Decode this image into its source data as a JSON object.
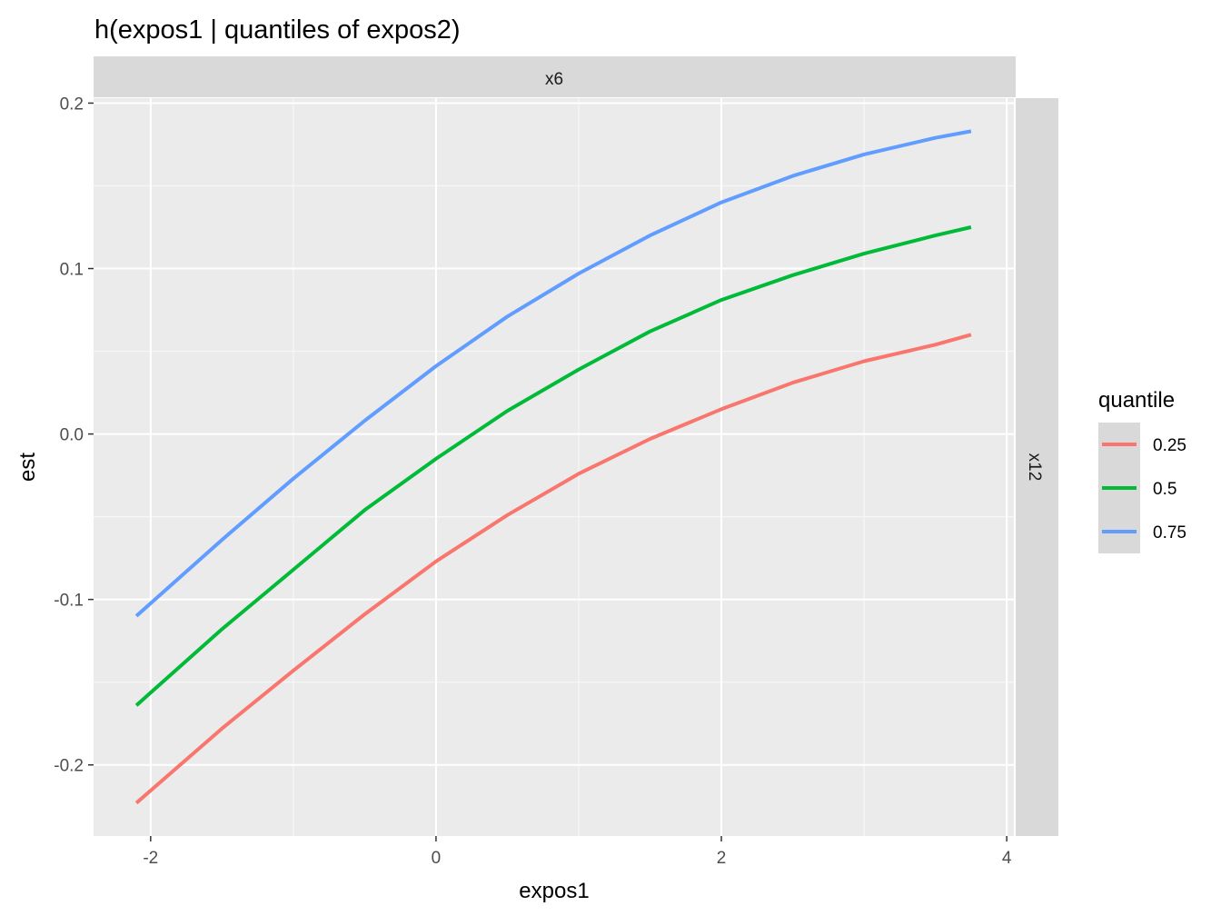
{
  "chart_data": {
    "type": "line",
    "title": "h(expos1 | quantiles of expos2)",
    "xlabel": "expos1",
    "ylabel": "est",
    "facet_top": "x6",
    "facet_right": "x12",
    "xlim": [
      -2.4,
      4.05
    ],
    "ylim": [
      -0.243,
      0.203
    ],
    "x_ticks": [
      -2,
      0,
      2,
      4
    ],
    "x_tick_labels": [
      "-2",
      "0",
      "2",
      "4"
    ],
    "y_ticks": [
      -0.2,
      -0.1,
      0.0,
      0.1,
      0.2
    ],
    "y_tick_labels": [
      "-0.2",
      "-0.1",
      "0.0",
      "0.1",
      "0.2"
    ],
    "grid": true,
    "legend": {
      "title": "quantile",
      "placement": "right"
    },
    "series": [
      {
        "name": "0.25",
        "color": "#F8766D",
        "x": [
          -2.1,
          -1.5,
          -1.0,
          -0.5,
          0.0,
          0.5,
          1.0,
          1.5,
          2.0,
          2.5,
          3.0,
          3.5,
          3.75
        ],
        "y": [
          -0.223,
          -0.178,
          -0.143,
          -0.109,
          -0.077,
          -0.049,
          -0.024,
          -0.003,
          0.015,
          0.031,
          0.044,
          0.054,
          0.06
        ]
      },
      {
        "name": "0.5",
        "color": "#00BA38",
        "x": [
          -2.1,
          -1.5,
          -1.0,
          -0.5,
          0.0,
          0.5,
          1.0,
          1.5,
          2.0,
          2.5,
          3.0,
          3.5,
          3.75
        ],
        "y": [
          -0.164,
          -0.118,
          -0.082,
          -0.046,
          -0.015,
          0.014,
          0.039,
          0.062,
          0.081,
          0.096,
          0.109,
          0.12,
          0.125
        ]
      },
      {
        "name": "0.75",
        "color": "#619CFF",
        "x": [
          -2.1,
          -1.5,
          -1.0,
          -0.5,
          0.0,
          0.5,
          1.0,
          1.5,
          2.0,
          2.5,
          3.0,
          3.5,
          3.75
        ],
        "y": [
          -0.11,
          -0.064,
          -0.027,
          0.008,
          0.041,
          0.071,
          0.097,
          0.12,
          0.14,
          0.156,
          0.169,
          0.179,
          0.183
        ]
      }
    ]
  }
}
